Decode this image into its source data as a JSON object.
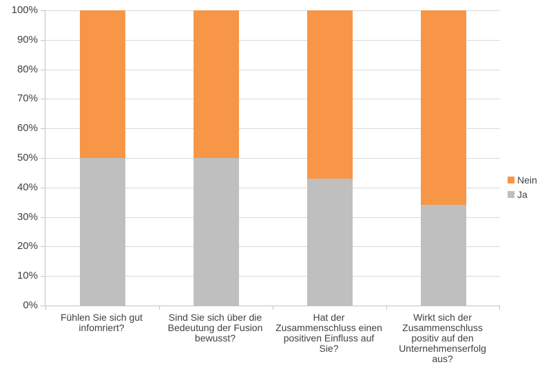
{
  "chart_data": {
    "type": "bar",
    "variant": "stacked-100-percent",
    "title": "",
    "xlabel": "",
    "ylabel": "",
    "categories": [
      "Fühlen Sie sich gut infomriert?",
      "Sind Sie sich über die Bedeutung der Fusion bewusst?",
      "Hat der Zusammenschluss einen positiven Einfluss auf Sie?",
      "Wirkt sich der Zusammenschluss positiv auf den Unternehmenserfolg aus?"
    ],
    "series": [
      {
        "name": "Ja",
        "color": "#BFBFBF",
        "values": [
          50,
          50,
          43,
          34
        ]
      },
      {
        "name": "Nein",
        "color": "#F79646",
        "values": [
          50,
          50,
          57,
          66
        ]
      }
    ],
    "y_ticks": [
      "0%",
      "10%",
      "20%",
      "30%",
      "40%",
      "50%",
      "60%",
      "70%",
      "80%",
      "90%",
      "100%"
    ],
    "ylim": [
      0,
      100
    ],
    "grid": true,
    "legend_position": "right",
    "legend_order": [
      "Nein",
      "Ja"
    ]
  },
  "colors": {
    "background": "#FFFFFF",
    "gridline": "#D9D9D9",
    "axis": "#C3C3C3",
    "text": "#404040"
  }
}
